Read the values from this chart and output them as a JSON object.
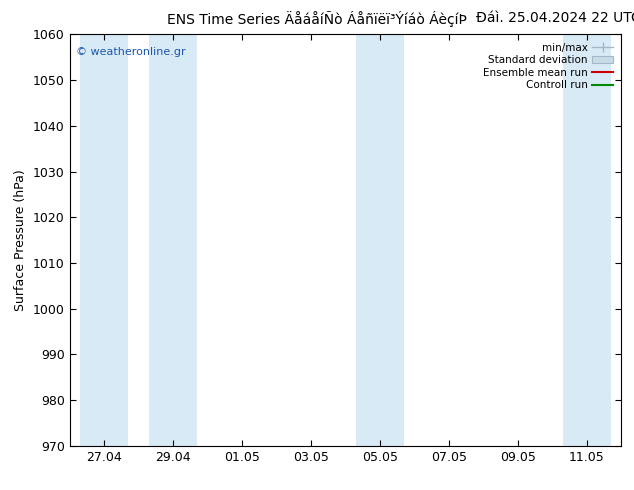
{
  "title_main": "ENS Time Series ÄåáåíÑò Áåñïëï³Ýíáò ÁèçíÞ",
  "title_date": "Ðáì. 25.04.2024 22 UTC",
  "ylabel": "Surface Pressure (hPa)",
  "ylim": [
    970,
    1060
  ],
  "yticks": [
    970,
    980,
    990,
    1000,
    1010,
    1020,
    1030,
    1040,
    1050,
    1060
  ],
  "xtick_labels": [
    "27.04",
    "29.04",
    "01.05",
    "03.05",
    "05.05",
    "07.05",
    "09.05",
    "11.05"
  ],
  "xtick_positions": [
    0,
    1,
    2,
    3,
    4,
    5,
    6,
    7
  ],
  "band_indices": [
    0,
    1,
    4,
    7
  ],
  "band_color": "#d8eaf5",
  "background_color": "#ffffff",
  "copyright_text": "© weatheronline.gr",
  "copyright_color": "#1a56b0",
  "title_fontsize": 10,
  "tick_fontsize": 9,
  "ylabel_fontsize": 9,
  "figsize": [
    6.34,
    4.9
  ],
  "dpi": 100
}
